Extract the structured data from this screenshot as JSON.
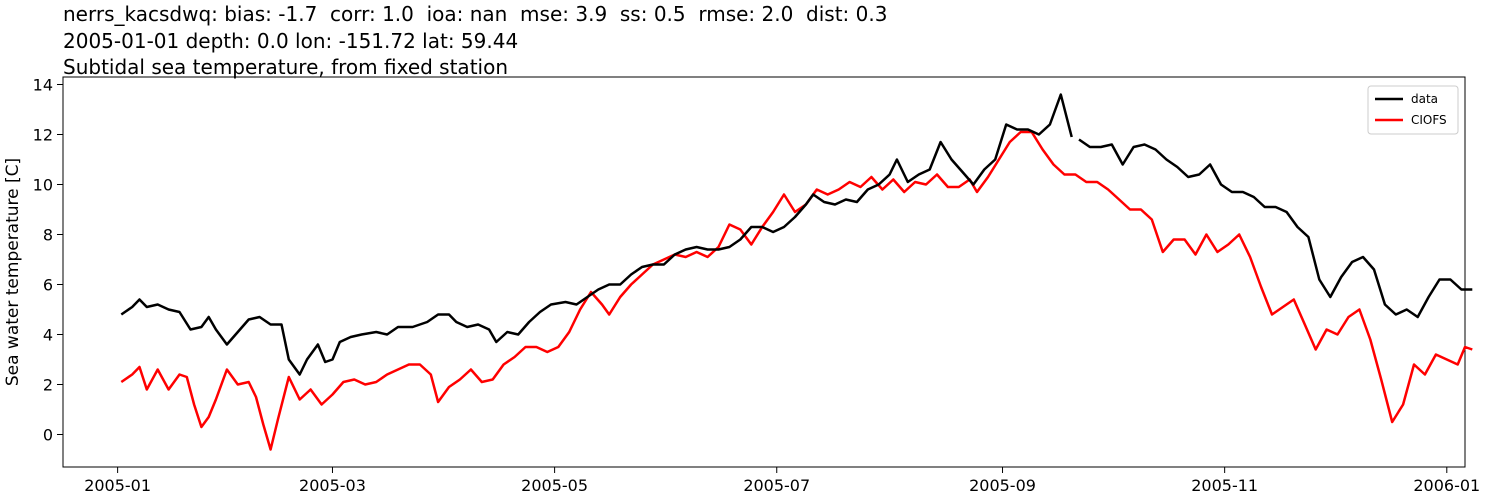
{
  "titles": {
    "line1": "nerrs_kacsdwq: bias: -1.7  corr: 1.0  ioa: nan  mse: 3.9  ss: 0.5  rmse: 2.0  dist: 0.3",
    "line2": "2005-01-01 depth: 0.0 lon: -151.72 lat: 59.44",
    "line3": "Subtidal sea temperature, from fixed station"
  },
  "chart_data": {
    "type": "line",
    "title": "Subtidal sea temperature, from fixed station",
    "xlabel": "",
    "ylabel": "Sea water temperature [C]",
    "xlim": [
      "2004-12-17",
      "2006-01-06"
    ],
    "ylim": [
      -1.3,
      14.3
    ],
    "x_ticks": [
      "2005-01-01",
      "2005-03-01",
      "2005-05-01",
      "2005-07-01",
      "2005-09-01",
      "2005-11-01",
      "2006-01-01"
    ],
    "x_tick_labels": [
      "2005-01",
      "2005-03",
      "2005-05",
      "2005-07",
      "2005-09",
      "2005-11",
      "2006-01"
    ],
    "y_ticks": [
      0,
      2,
      4,
      6,
      8,
      10,
      12,
      14
    ],
    "y_tick_labels": [
      "0",
      "2",
      "4",
      "6",
      "8",
      "10",
      "12",
      "14"
    ],
    "grid": false,
    "legend_position": "top-right",
    "series": [
      {
        "name": "data",
        "color": "#000000",
        "points": [
          [
            "2005-01-02",
            4.8
          ],
          [
            "2005-01-05",
            5.1
          ],
          [
            "2005-01-07",
            5.4
          ],
          [
            "2005-01-09",
            5.1
          ],
          [
            "2005-01-12",
            5.2
          ],
          [
            "2005-01-15",
            5.0
          ],
          [
            "2005-01-18",
            4.9
          ],
          [
            "2005-01-21",
            4.2
          ],
          [
            "2005-01-24",
            4.3
          ],
          [
            "2005-01-26",
            4.7
          ],
          [
            "2005-01-28",
            4.2
          ],
          [
            "2005-01-31",
            3.6
          ],
          [
            "2005-02-03",
            4.1
          ],
          [
            "2005-02-06",
            4.6
          ],
          [
            "2005-02-09",
            4.7
          ],
          [
            "2005-02-12",
            4.4
          ],
          [
            "2005-02-15",
            4.4
          ],
          [
            "2005-02-17",
            3.0
          ],
          [
            "2005-02-20",
            2.4
          ],
          [
            "2005-02-22",
            3.0
          ],
          [
            "2005-02-25",
            3.6
          ],
          [
            "2005-02-27",
            2.9
          ],
          [
            "2005-03-01",
            3.0
          ],
          [
            "2005-03-03",
            3.7
          ],
          [
            "2005-03-06",
            3.9
          ],
          [
            "2005-03-09",
            4.0
          ],
          [
            "2005-03-13",
            4.1
          ],
          [
            "2005-03-16",
            4.0
          ],
          [
            "2005-03-19",
            4.3
          ],
          [
            "2005-03-23",
            4.3
          ],
          [
            "2005-03-27",
            4.5
          ],
          [
            "2005-03-30",
            4.8
          ],
          [
            "2005-04-02",
            4.8
          ],
          [
            "2005-04-04",
            4.5
          ],
          [
            "2005-04-07",
            4.3
          ],
          [
            "2005-04-10",
            4.4
          ],
          [
            "2005-04-13",
            4.2
          ],
          [
            "2005-04-15",
            3.7
          ],
          [
            "2005-04-18",
            4.1
          ],
          [
            "2005-04-21",
            4.0
          ],
          [
            "2005-04-24",
            4.5
          ],
          [
            "2005-04-27",
            4.9
          ],
          [
            "2005-04-30",
            5.2
          ],
          [
            "2005-05-04",
            5.3
          ],
          [
            "2005-05-07",
            5.2
          ],
          [
            "2005-05-10",
            5.5
          ],
          [
            "2005-05-13",
            5.8
          ],
          [
            "2005-05-16",
            6.0
          ],
          [
            "2005-05-19",
            6.0
          ],
          [
            "2005-05-22",
            6.4
          ],
          [
            "2005-05-25",
            6.7
          ],
          [
            "2005-05-28",
            6.8
          ],
          [
            "2005-05-31",
            6.8
          ],
          [
            "2005-06-03",
            7.2
          ],
          [
            "2005-06-06",
            7.4
          ],
          [
            "2005-06-09",
            7.5
          ],
          [
            "2005-06-12",
            7.4
          ],
          [
            "2005-06-15",
            7.4
          ],
          [
            "2005-06-18",
            7.5
          ],
          [
            "2005-06-21",
            7.8
          ],
          [
            "2005-06-24",
            8.3
          ],
          [
            "2005-06-27",
            8.3
          ],
          [
            "2005-06-30",
            8.1
          ],
          [
            "2005-07-03",
            8.3
          ],
          [
            "2005-07-06",
            8.7
          ],
          [
            "2005-07-09",
            9.2
          ],
          [
            "2005-07-11",
            9.6
          ],
          [
            "2005-07-14",
            9.3
          ],
          [
            "2005-07-17",
            9.2
          ],
          [
            "2005-07-20",
            9.4
          ],
          [
            "2005-07-23",
            9.3
          ],
          [
            "2005-07-26",
            9.8
          ],
          [
            "2005-07-29",
            10.0
          ],
          [
            "2005-08-01",
            10.4
          ],
          [
            "2005-08-03",
            11.0
          ],
          [
            "2005-08-06",
            10.1
          ],
          [
            "2005-08-09",
            10.4
          ],
          [
            "2005-08-12",
            10.6
          ],
          [
            "2005-08-15",
            11.7
          ],
          [
            "2005-08-18",
            11.0
          ],
          [
            "2005-08-21",
            10.5
          ],
          [
            "2005-08-24",
            10.0
          ],
          [
            "2005-08-27",
            10.6
          ],
          [
            "2005-08-30",
            11.0
          ],
          [
            "2005-09-02",
            12.4
          ],
          [
            "2005-09-05",
            12.2
          ],
          [
            "2005-09-08",
            12.2
          ],
          [
            "2005-09-11",
            12.0
          ],
          [
            "2005-09-14",
            12.4
          ],
          [
            "2005-09-17",
            13.6
          ],
          [
            "2005-09-20",
            11.9
          ]
        ]
      },
      {
        "name": "data",
        "color": "#000000",
        "points": [
          [
            "2005-09-22",
            11.8
          ],
          [
            "2005-09-25",
            11.5
          ],
          [
            "2005-09-28",
            11.5
          ],
          [
            "2005-10-01",
            11.6
          ],
          [
            "2005-10-04",
            10.8
          ],
          [
            "2005-10-07",
            11.5
          ],
          [
            "2005-10-10",
            11.6
          ],
          [
            "2005-10-13",
            11.4
          ],
          [
            "2005-10-16",
            11.0
          ],
          [
            "2005-10-19",
            10.7
          ],
          [
            "2005-10-22",
            10.3
          ],
          [
            "2005-10-25",
            10.4
          ],
          [
            "2005-10-28",
            10.8
          ],
          [
            "2005-10-31",
            10.0
          ],
          [
            "2005-11-03",
            9.7
          ],
          [
            "2005-11-06",
            9.7
          ],
          [
            "2005-11-09",
            9.5
          ],
          [
            "2005-11-12",
            9.1
          ],
          [
            "2005-11-15",
            9.1
          ],
          [
            "2005-11-18",
            8.9
          ],
          [
            "2005-11-21",
            8.3
          ],
          [
            "2005-11-24",
            7.9
          ],
          [
            "2005-11-27",
            6.2
          ],
          [
            "2005-11-30",
            5.5
          ],
          [
            "2005-12-03",
            6.3
          ],
          [
            "2005-12-06",
            6.9
          ],
          [
            "2005-12-09",
            7.1
          ],
          [
            "2005-12-12",
            6.6
          ],
          [
            "2005-12-15",
            5.2
          ],
          [
            "2005-12-18",
            4.8
          ],
          [
            "2005-12-21",
            5.0
          ],
          [
            "2005-12-24",
            4.7
          ],
          [
            "2005-12-27",
            5.5
          ],
          [
            "2005-12-30",
            6.2
          ],
          [
            "2006-01-02",
            6.2
          ],
          [
            "2006-01-05",
            5.8
          ],
          [
            "2006-01-08",
            5.8
          ]
        ]
      },
      {
        "name": "CIOFS",
        "color": "#ff0000",
        "points": [
          [
            "2005-01-02",
            2.1
          ],
          [
            "2005-01-05",
            2.4
          ],
          [
            "2005-01-07",
            2.7
          ],
          [
            "2005-01-09",
            1.8
          ],
          [
            "2005-01-12",
            2.6
          ],
          [
            "2005-01-15",
            1.8
          ],
          [
            "2005-01-18",
            2.4
          ],
          [
            "2005-01-20",
            2.3
          ],
          [
            "2005-01-22",
            1.2
          ],
          [
            "2005-01-24",
            0.3
          ],
          [
            "2005-01-26",
            0.7
          ],
          [
            "2005-01-28",
            1.4
          ],
          [
            "2005-01-31",
            2.6
          ],
          [
            "2005-02-03",
            2.0
          ],
          [
            "2005-02-06",
            2.1
          ],
          [
            "2005-02-08",
            1.5
          ],
          [
            "2005-02-10",
            0.4
          ],
          [
            "2005-02-12",
            -0.6
          ],
          [
            "2005-02-14",
            0.6
          ],
          [
            "2005-02-17",
            2.3
          ],
          [
            "2005-02-20",
            1.4
          ],
          [
            "2005-02-23",
            1.8
          ],
          [
            "2005-02-26",
            1.2
          ],
          [
            "2005-03-01",
            1.6
          ],
          [
            "2005-03-04",
            2.1
          ],
          [
            "2005-03-07",
            2.2
          ],
          [
            "2005-03-10",
            2.0
          ],
          [
            "2005-03-13",
            2.1
          ],
          [
            "2005-03-16",
            2.4
          ],
          [
            "2005-03-19",
            2.6
          ],
          [
            "2005-03-22",
            2.8
          ],
          [
            "2005-03-25",
            2.8
          ],
          [
            "2005-03-28",
            2.4
          ],
          [
            "2005-03-30",
            1.3
          ],
          [
            "2005-04-02",
            1.9
          ],
          [
            "2005-04-05",
            2.2
          ],
          [
            "2005-04-08",
            2.6
          ],
          [
            "2005-04-11",
            2.1
          ],
          [
            "2005-04-14",
            2.2
          ],
          [
            "2005-04-17",
            2.8
          ],
          [
            "2005-04-20",
            3.1
          ],
          [
            "2005-04-23",
            3.5
          ],
          [
            "2005-04-26",
            3.5
          ],
          [
            "2005-04-29",
            3.3
          ],
          [
            "2005-05-02",
            3.5
          ],
          [
            "2005-05-05",
            4.1
          ],
          [
            "2005-05-08",
            5.0
          ],
          [
            "2005-05-11",
            5.7
          ],
          [
            "2005-05-14",
            5.2
          ],
          [
            "2005-05-16",
            4.8
          ],
          [
            "2005-05-19",
            5.5
          ],
          [
            "2005-05-22",
            6.0
          ],
          [
            "2005-05-25",
            6.4
          ],
          [
            "2005-05-28",
            6.8
          ],
          [
            "2005-05-31",
            7.0
          ],
          [
            "2005-06-03",
            7.2
          ],
          [
            "2005-06-06",
            7.1
          ],
          [
            "2005-06-09",
            7.3
          ],
          [
            "2005-06-12",
            7.1
          ],
          [
            "2005-06-15",
            7.5
          ],
          [
            "2005-06-18",
            8.4
          ],
          [
            "2005-06-21",
            8.2
          ],
          [
            "2005-06-24",
            7.6
          ],
          [
            "2005-06-27",
            8.3
          ],
          [
            "2005-06-30",
            8.9
          ],
          [
            "2005-07-03",
            9.6
          ],
          [
            "2005-07-06",
            8.9
          ],
          [
            "2005-07-09",
            9.2
          ],
          [
            "2005-07-12",
            9.8
          ],
          [
            "2005-07-15",
            9.6
          ],
          [
            "2005-07-18",
            9.8
          ],
          [
            "2005-07-21",
            10.1
          ],
          [
            "2005-07-24",
            9.9
          ],
          [
            "2005-07-27",
            10.3
          ],
          [
            "2005-07-30",
            9.8
          ],
          [
            "2005-08-02",
            10.2
          ],
          [
            "2005-08-05",
            9.7
          ],
          [
            "2005-08-08",
            10.1
          ],
          [
            "2005-08-11",
            10.0
          ],
          [
            "2005-08-14",
            10.4
          ],
          [
            "2005-08-17",
            9.9
          ],
          [
            "2005-08-20",
            9.9
          ],
          [
            "2005-08-23",
            10.2
          ],
          [
            "2005-08-25",
            9.7
          ],
          [
            "2005-08-28",
            10.3
          ],
          [
            "2005-08-31",
            11.0
          ],
          [
            "2005-09-03",
            11.7
          ],
          [
            "2005-09-06",
            12.1
          ],
          [
            "2005-09-09",
            12.1
          ],
          [
            "2005-09-12",
            11.4
          ],
          [
            "2005-09-15",
            10.8
          ],
          [
            "2005-09-18",
            10.4
          ],
          [
            "2005-09-21",
            10.4
          ],
          [
            "2005-09-24",
            10.1
          ],
          [
            "2005-09-27",
            10.1
          ],
          [
            "2005-09-30",
            9.8
          ],
          [
            "2005-10-03",
            9.4
          ],
          [
            "2005-10-06",
            9.0
          ],
          [
            "2005-10-09",
            9.0
          ],
          [
            "2005-10-12",
            8.6
          ],
          [
            "2005-10-15",
            7.3
          ],
          [
            "2005-10-18",
            7.8
          ],
          [
            "2005-10-21",
            7.8
          ],
          [
            "2005-10-24",
            7.2
          ],
          [
            "2005-10-27",
            8.0
          ],
          [
            "2005-10-30",
            7.3
          ],
          [
            "2005-11-02",
            7.6
          ],
          [
            "2005-11-05",
            8.0
          ],
          [
            "2005-11-08",
            7.1
          ],
          [
            "2005-11-11",
            5.9
          ],
          [
            "2005-11-14",
            4.8
          ],
          [
            "2005-11-17",
            5.1
          ],
          [
            "2005-11-20",
            5.4
          ],
          [
            "2005-11-23",
            4.4
          ],
          [
            "2005-11-26",
            3.4
          ],
          [
            "2005-11-29",
            4.2
          ],
          [
            "2005-12-02",
            4.0
          ],
          [
            "2005-12-05",
            4.7
          ],
          [
            "2005-12-08",
            5.0
          ],
          [
            "2005-12-11",
            3.8
          ],
          [
            "2005-12-14",
            2.2
          ],
          [
            "2005-12-17",
            0.5
          ],
          [
            "2005-12-20",
            1.2
          ],
          [
            "2005-12-23",
            2.8
          ],
          [
            "2005-12-26",
            2.4
          ],
          [
            "2005-12-29",
            3.2
          ],
          [
            "2006-01-01",
            3.0
          ],
          [
            "2006-01-04",
            2.8
          ],
          [
            "2006-01-06",
            3.5
          ],
          [
            "2006-01-08",
            3.4
          ]
        ]
      }
    ]
  }
}
